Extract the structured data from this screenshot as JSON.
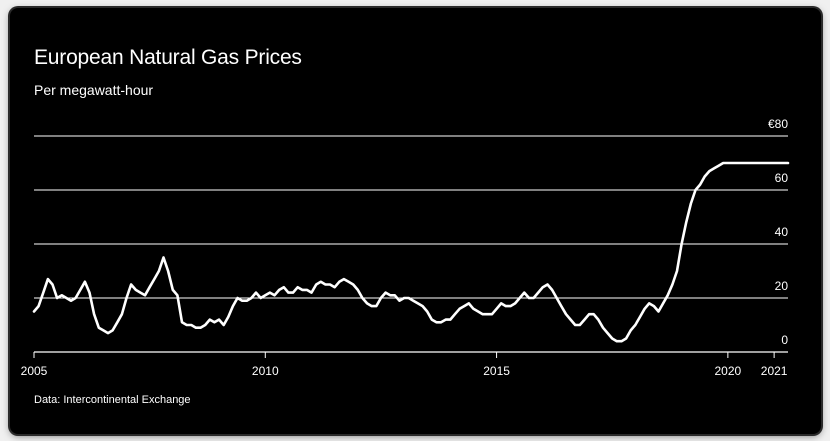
{
  "title": "European Natural Gas Prices",
  "subtitle": "Per megawatt-hour",
  "source": "Data: Intercontinental Exchange",
  "colors": {
    "background": "#000000",
    "line": "#ffffff",
    "grid": "#ffffff"
  },
  "chart_data": {
    "type": "line",
    "title": "European Natural Gas Prices",
    "subtitle": "Per megawatt-hour",
    "xlim": [
      2005,
      2021.3
    ],
    "ylim": [
      0,
      80
    ],
    "grid": true,
    "y_ticks": [
      0,
      20,
      40,
      60,
      80
    ],
    "y_tick_labels": [
      "0",
      "20",
      "40",
      "60",
      "€80"
    ],
    "x_ticks": [
      2005,
      2010,
      2015,
      2020,
      2021
    ],
    "x_tick_labels": [
      "2005",
      "2010",
      "2015",
      "2020",
      "2021"
    ],
    "series": [
      {
        "x": [
          2005.0,
          2005.1,
          2005.2,
          2005.3,
          2005.4,
          2005.5,
          2005.6,
          2005.7,
          2005.8,
          2005.9,
          2006.0,
          2006.1,
          2006.2,
          2006.3,
          2006.4,
          2006.5,
          2006.6,
          2006.7,
          2006.8,
          2006.9,
          2007.0,
          2007.1,
          2007.2,
          2007.3,
          2007.4,
          2007.5,
          2007.6,
          2007.7,
          2007.8,
          2007.9,
          2008.0,
          2008.1,
          2008.2,
          2008.3,
          2008.4,
          2008.5,
          2008.6,
          2008.7,
          2008.8,
          2008.9,
          2009.0,
          2009.1,
          2009.2,
          2009.3,
          2009.4,
          2009.5,
          2009.6,
          2009.7,
          2009.8,
          2009.9,
          2010.0,
          2010.1,
          2010.2,
          2010.3,
          2010.4,
          2010.5,
          2010.6,
          2010.7,
          2010.8,
          2010.9,
          2011.0,
          2011.1,
          2011.2,
          2011.3,
          2011.4,
          2011.5,
          2011.6,
          2011.7,
          2011.8,
          2011.9,
          2012.0,
          2012.1,
          2012.2,
          2012.3,
          2012.4,
          2012.5,
          2012.6,
          2012.7,
          2012.8,
          2012.9,
          2013.0,
          2013.1,
          2013.2,
          2013.3,
          2013.4,
          2013.5,
          2013.6,
          2013.7,
          2013.8,
          2013.9,
          2014.0,
          2014.1,
          2014.2,
          2014.3,
          2014.4,
          2014.5,
          2014.6,
          2014.7,
          2014.8,
          2014.9,
          2015.0,
          2015.1,
          2015.2,
          2015.3,
          2015.4,
          2015.5,
          2015.6,
          2015.7,
          2015.8,
          2015.9,
          2016.0,
          2016.1,
          2016.2,
          2016.3,
          2016.4,
          2016.5,
          2016.6,
          2016.7,
          2016.8,
          2016.9,
          2017.0,
          2017.1,
          2017.2,
          2017.3,
          2017.4,
          2017.5,
          2017.6,
          2017.7,
          2017.8,
          2017.9,
          2018.0,
          2018.1,
          2018.2,
          2018.3,
          2018.4,
          2018.5,
          2018.6,
          2018.7,
          2018.8,
          2018.9,
          2019.0,
          2019.1,
          2019.2,
          2019.3,
          2019.4,
          2019.5,
          2019.6,
          2019.7,
          2019.8,
          2019.9,
          2020.0,
          2020.1,
          2020.2,
          2020.3,
          2020.4,
          2020.5,
          2020.6,
          2020.7,
          2020.8,
          2020.9,
          2021.0,
          2021.1,
          2021.2,
          2021.3
        ],
        "y": [
          15,
          17,
          22,
          27,
          25,
          20,
          21,
          20,
          19,
          20,
          23,
          26,
          22,
          14,
          9,
          8,
          7,
          8,
          11,
          14,
          20,
          25,
          23,
          22,
          21,
          24,
          27,
          30,
          35,
          30,
          23,
          21,
          11,
          10,
          10,
          9,
          9,
          10,
          12,
          11,
          12,
          10,
          13,
          17,
          20,
          19,
          19,
          20,
          22,
          20,
          21,
          22,
          21,
          23,
          24,
          22,
          22,
          24,
          23,
          23,
          22,
          25,
          26,
          25,
          25,
          24,
          26,
          27,
          26,
          25,
          23,
          20,
          18,
          17,
          17,
          20,
          22,
          21,
          21,
          19,
          20,
          20,
          19,
          18,
          17,
          15,
          12,
          11,
          11,
          12,
          12,
          14,
          16,
          17,
          18,
          16,
          15,
          14,
          14,
          14,
          16,
          18,
          17,
          17,
          18,
          20,
          22,
          20,
          20,
          22,
          24,
          25,
          23,
          20,
          17,
          14,
          12,
          10,
          10,
          12,
          14,
          14,
          12,
          9,
          7,
          5,
          4,
          4,
          5,
          8,
          10,
          13,
          16,
          18,
          17,
          15,
          18,
          21,
          25,
          30,
          40,
          48,
          55,
          60,
          62,
          65,
          67,
          68,
          69,
          70,
          70,
          70,
          70,
          70,
          70,
          70,
          70,
          70,
          70,
          70,
          70,
          70,
          70,
          70
        ]
      }
    ]
  }
}
